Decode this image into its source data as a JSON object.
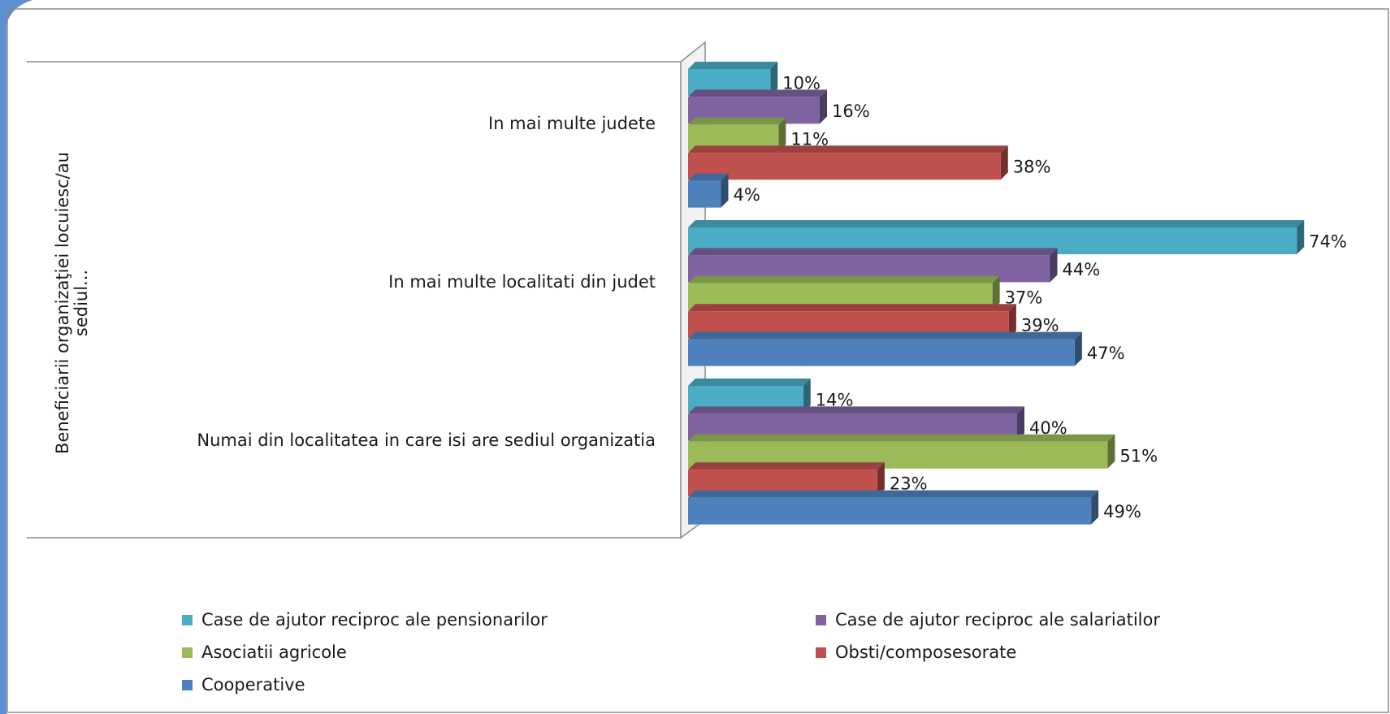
{
  "chart_data": {
    "type": "bar3d-horizontal",
    "y_axis_label": "Beneficiarii organizaţiei locuiesc/au sediul...",
    "categories": [
      "In mai multe judete",
      "In mai multe localitati din judet",
      "Numai din localitatea in care isi are sediul organizatia"
    ],
    "series": [
      {
        "name": "Case de ajutor reciproc ale pensionarilor",
        "color": "#4bacc6",
        "values": [
          10,
          74,
          14
        ],
        "value_labels": [
          "10%",
          "74%",
          "14%"
        ]
      },
      {
        "name": "Case de ajutor reciproc ale salariatilor",
        "color": "#8064a2",
        "values": [
          16,
          44,
          40
        ],
        "value_labels": [
          "16%",
          "44%",
          "40%"
        ]
      },
      {
        "name": "Asociatii agricole",
        "color": "#9bbb59",
        "values": [
          11,
          37,
          51
        ],
        "value_labels": [
          "11%",
          "37%",
          "51%"
        ]
      },
      {
        "name": "Obsti/composesorate",
        "color": "#c0504d",
        "values": [
          38,
          39,
          23
        ],
        "value_labels": [
          "38%",
          "39%",
          "23%"
        ]
      },
      {
        "name": "Cooperative",
        "color": "#4f81bd",
        "values": [
          4,
          47,
          49
        ],
        "value_labels": [
          "4%",
          "47%",
          "49%"
        ]
      }
    ],
    "xlim": [
      0,
      80
    ],
    "legend": "bottom"
  }
}
